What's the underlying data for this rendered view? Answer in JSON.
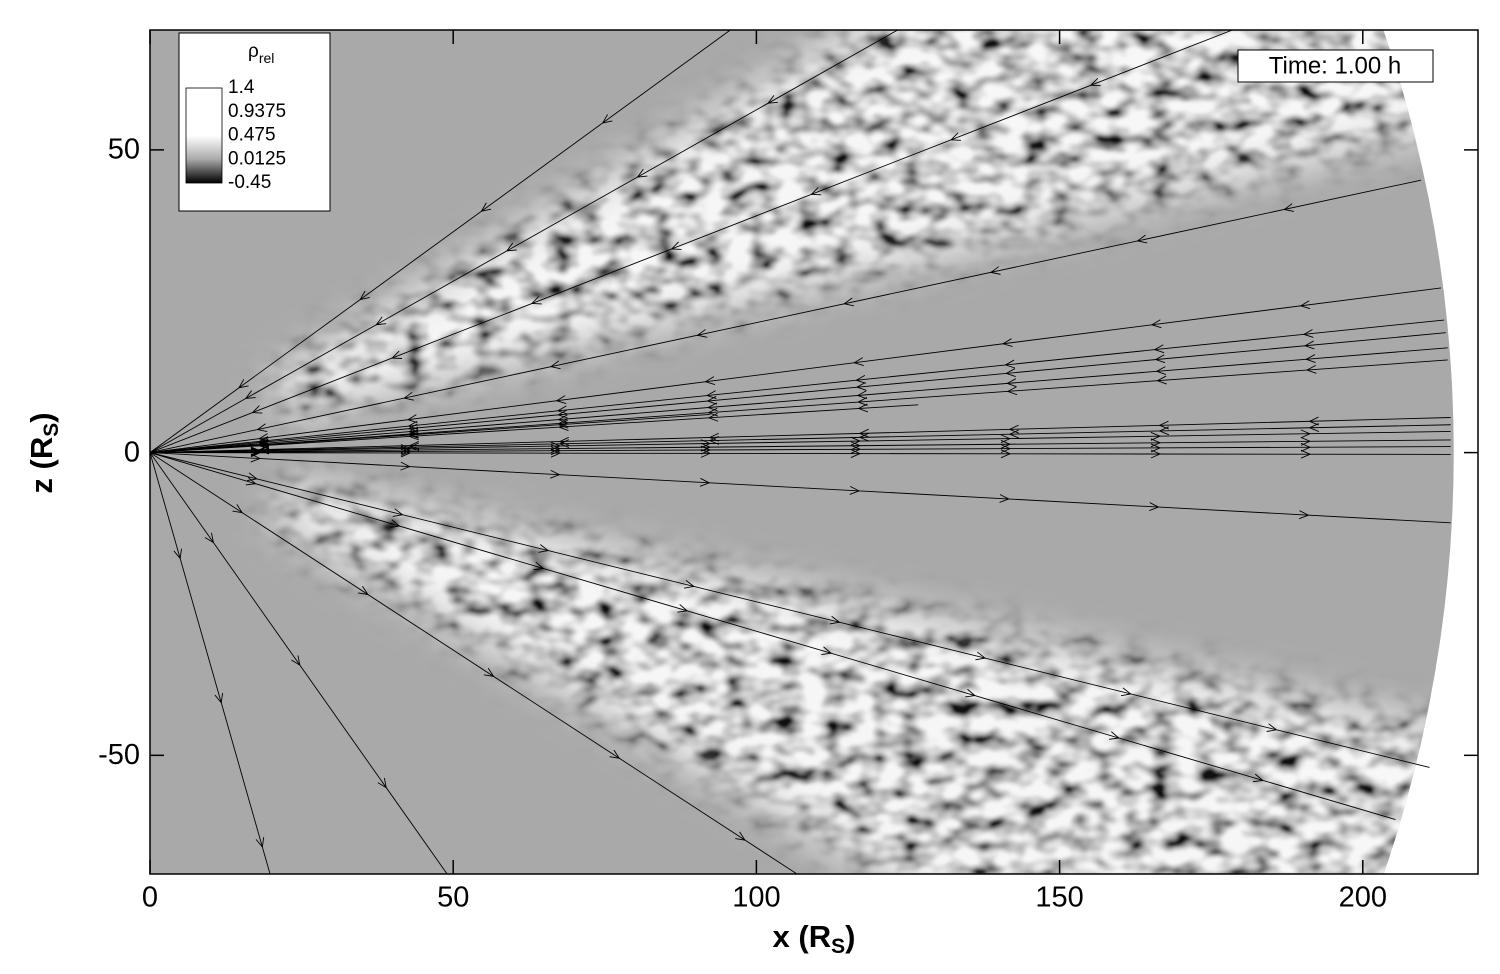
{
  "chart_data": {
    "type": "field",
    "xlabel": [
      "x (R",
      "S",
      ")"
    ],
    "ylabel": [
      "z (R",
      "S",
      ")"
    ],
    "annotation": "Time: 1.00 h",
    "xlim": [
      0,
      219
    ],
    "ylim": [
      -69.6,
      69.8
    ],
    "xticks": [
      0,
      50,
      100,
      150,
      200
    ],
    "yticks": [
      -50,
      0,
      50
    ],
    "domain_radius": 215,
    "background_color": "#a9a9a9",
    "line_color": "#000000",
    "colorbar": {
      "title": "ρ",
      "title_subscript": "rel",
      "levels": [
        1.4,
        0.9375,
        0.475,
        0.0125,
        -0.45
      ],
      "colors": [
        "#ffffff",
        "#ffffff",
        "#ffffff",
        "#a9a9a9",
        "#000000"
      ]
    },
    "field_lines": [
      {
        "end": [
          95.7,
          69.8
        ],
        "direction": "inward"
      },
      {
        "end": [
          123.3,
          69.8
        ],
        "direction": "inward"
      },
      {
        "end": [
          178.5,
          69.8
        ],
        "direction": "inward"
      },
      {
        "end": [
          209.6,
          45.0
        ],
        "direction": "inward"
      },
      {
        "end": [
          212.9,
          27.2
        ],
        "direction": "inward"
      },
      {
        "end": [
          213.4,
          21.9
        ],
        "direction": "inward"
      },
      {
        "end": [
          213.7,
          19.8
        ],
        "direction": "inward"
      },
      {
        "end": [
          214.0,
          17.3
        ],
        "direction": "inward"
      },
      {
        "end": [
          214.0,
          15.3
        ],
        "direction": "inward"
      },
      {
        "end": [
          126.7,
          7.9
        ],
        "direction": "inward"
      },
      {
        "end": [
          92.4,
          6.3
        ],
        "direction": "inward"
      },
      {
        "end": [
          214.5,
          5.8
        ],
        "direction": "inward"
      },
      {
        "end": [
          214.5,
          4.6
        ],
        "direction": "inward"
      },
      {
        "end": [
          214.5,
          3.5
        ],
        "direction": "outward"
      },
      {
        "end": [
          214.5,
          2.1
        ],
        "direction": "outward"
      },
      {
        "end": [
          214.5,
          1.0
        ],
        "direction": "outward"
      },
      {
        "end": [
          214.5,
          -0.3
        ],
        "direction": "outward"
      },
      {
        "end": [
          214.5,
          -11.6
        ],
        "direction": "outward"
      },
      {
        "end": [
          211.0,
          -52.0
        ],
        "direction": "outward"
      },
      {
        "end": [
          205.4,
          -60.6
        ],
        "direction": "outward"
      },
      {
        "end": [
          106.7,
          -69.6
        ],
        "direction": "outward"
      },
      {
        "end": [
          49.0,
          -69.6
        ],
        "direction": "outward"
      },
      {
        "end": [
          19.8,
          -69.6
        ],
        "direction": "outward"
      }
    ]
  }
}
